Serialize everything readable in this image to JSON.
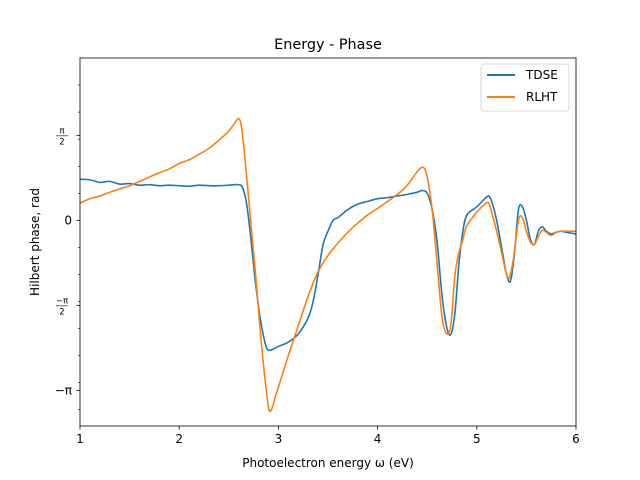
{
  "chart_data": {
    "type": "line",
    "title": "Energy - Phase",
    "xlabel": "Photoelectron energy ω (eV)",
    "ylabel": "Hilbert phase, rad",
    "xlim": [
      1,
      6
    ],
    "ylim": [
      -3.8,
      3.0
    ],
    "x_ticks": [
      {
        "value": 1,
        "label": "1"
      },
      {
        "value": 2,
        "label": "2"
      },
      {
        "value": 3,
        "label": "3"
      },
      {
        "value": 4,
        "label": "4"
      },
      {
        "value": 5,
        "label": "5"
      },
      {
        "value": 6,
        "label": "6"
      }
    ],
    "y_ticks": [
      {
        "value": -3.14159,
        "label": "−π"
      },
      {
        "value": -1.5708,
        "num": "−π",
        "den": "2"
      },
      {
        "value": 0,
        "label": "0"
      },
      {
        "value": 1.5708,
        "num": "π",
        "den": "2"
      }
    ],
    "legend_position": "upper-right",
    "grid": false,
    "series": [
      {
        "name": "TDSE",
        "color": "#1f77b4",
        "points": [
          [
            1.0,
            0.76
          ],
          [
            1.1,
            0.75
          ],
          [
            1.2,
            0.7
          ],
          [
            1.3,
            0.72
          ],
          [
            1.4,
            0.67
          ],
          [
            1.5,
            0.68
          ],
          [
            1.6,
            0.65
          ],
          [
            1.7,
            0.66
          ],
          [
            1.8,
            0.64
          ],
          [
            1.9,
            0.65
          ],
          [
            2.0,
            0.64
          ],
          [
            2.1,
            0.63
          ],
          [
            2.2,
            0.65
          ],
          [
            2.3,
            0.64
          ],
          [
            2.4,
            0.64
          ],
          [
            2.5,
            0.65
          ],
          [
            2.6,
            0.66
          ],
          [
            2.64,
            0.6
          ],
          [
            2.68,
            0.3
          ],
          [
            2.72,
            -0.3
          ],
          [
            2.76,
            -1.0
          ],
          [
            2.8,
            -1.6
          ],
          [
            2.84,
            -2.05
          ],
          [
            2.88,
            -2.35
          ],
          [
            2.92,
            -2.4
          ],
          [
            3.0,
            -2.33
          ],
          [
            3.1,
            -2.25
          ],
          [
            3.2,
            -2.1
          ],
          [
            3.3,
            -1.8
          ],
          [
            3.35,
            -1.5
          ],
          [
            3.4,
            -1.0
          ],
          [
            3.45,
            -0.45
          ],
          [
            3.5,
            -0.2
          ],
          [
            3.55,
            0.0
          ],
          [
            3.6,
            0.05
          ],
          [
            3.7,
            0.2
          ],
          [
            3.8,
            0.3
          ],
          [
            3.9,
            0.35
          ],
          [
            4.0,
            0.4
          ],
          [
            4.1,
            0.42
          ],
          [
            4.2,
            0.45
          ],
          [
            4.3,
            0.48
          ],
          [
            4.4,
            0.52
          ],
          [
            4.45,
            0.55
          ],
          [
            4.5,
            0.5
          ],
          [
            4.55,
            0.2
          ],
          [
            4.6,
            -0.4
          ],
          [
            4.65,
            -1.4
          ],
          [
            4.7,
            -2.0
          ],
          [
            4.74,
            -2.1
          ],
          [
            4.78,
            -1.7
          ],
          [
            4.82,
            -0.8
          ],
          [
            4.86,
            -0.2
          ],
          [
            4.9,
            0.1
          ],
          [
            5.0,
            0.25
          ],
          [
            5.08,
            0.4
          ],
          [
            5.12,
            0.45
          ],
          [
            5.15,
            0.35
          ],
          [
            5.2,
            0.0
          ],
          [
            5.25,
            -0.5
          ],
          [
            5.3,
            -1.0
          ],
          [
            5.34,
            -1.12
          ],
          [
            5.38,
            -0.6
          ],
          [
            5.42,
            0.2
          ],
          [
            5.46,
            0.25
          ],
          [
            5.5,
            0.0
          ],
          [
            5.54,
            -0.35
          ],
          [
            5.58,
            -0.45
          ],
          [
            5.62,
            -0.2
          ],
          [
            5.66,
            -0.12
          ],
          [
            5.7,
            -0.2
          ],
          [
            5.75,
            -0.25
          ],
          [
            5.8,
            -0.22
          ],
          [
            5.85,
            -0.2
          ],
          [
            5.9,
            -0.22
          ],
          [
            6.0,
            -0.25
          ]
        ]
      },
      {
        "name": "RLHT",
        "color": "#ff7f0e",
        "points": [
          [
            1.0,
            0.32
          ],
          [
            1.1,
            0.4
          ],
          [
            1.2,
            0.45
          ],
          [
            1.3,
            0.52
          ],
          [
            1.4,
            0.58
          ],
          [
            1.5,
            0.64
          ],
          [
            1.6,
            0.72
          ],
          [
            1.7,
            0.8
          ],
          [
            1.8,
            0.88
          ],
          [
            1.9,
            0.95
          ],
          [
            2.0,
            1.05
          ],
          [
            2.1,
            1.12
          ],
          [
            2.2,
            1.22
          ],
          [
            2.3,
            1.33
          ],
          [
            2.4,
            1.48
          ],
          [
            2.5,
            1.65
          ],
          [
            2.56,
            1.8
          ],
          [
            2.6,
            1.88
          ],
          [
            2.63,
            1.7
          ],
          [
            2.67,
            1.0
          ],
          [
            2.72,
            0.0
          ],
          [
            2.77,
            -1.0
          ],
          [
            2.82,
            -2.1
          ],
          [
            2.86,
            -2.85
          ],
          [
            2.9,
            -3.45
          ],
          [
            2.93,
            -3.5
          ],
          [
            2.98,
            -3.2
          ],
          [
            3.1,
            -2.5
          ],
          [
            3.2,
            -1.95
          ],
          [
            3.3,
            -1.4
          ],
          [
            3.4,
            -0.95
          ],
          [
            3.5,
            -0.65
          ],
          [
            3.6,
            -0.42
          ],
          [
            3.7,
            -0.22
          ],
          [
            3.8,
            -0.05
          ],
          [
            3.9,
            0.1
          ],
          [
            4.0,
            0.22
          ],
          [
            4.1,
            0.35
          ],
          [
            4.2,
            0.48
          ],
          [
            4.3,
            0.65
          ],
          [
            4.4,
            0.9
          ],
          [
            4.46,
            0.98
          ],
          [
            4.5,
            0.8
          ],
          [
            4.55,
            0.2
          ],
          [
            4.6,
            -0.8
          ],
          [
            4.65,
            -1.8
          ],
          [
            4.7,
            -2.1
          ],
          [
            4.74,
            -1.9
          ],
          [
            4.78,
            -1.0
          ],
          [
            4.82,
            -0.6
          ],
          [
            4.86,
            -0.35
          ],
          [
            4.9,
            -0.1
          ],
          [
            5.0,
            0.15
          ],
          [
            5.08,
            0.3
          ],
          [
            5.12,
            0.32
          ],
          [
            5.15,
            0.15
          ],
          [
            5.2,
            -0.2
          ],
          [
            5.25,
            -0.6
          ],
          [
            5.3,
            -1.0
          ],
          [
            5.33,
            -1.05
          ],
          [
            5.37,
            -0.7
          ],
          [
            5.42,
            0.0
          ],
          [
            5.46,
            0.05
          ],
          [
            5.5,
            -0.2
          ],
          [
            5.54,
            -0.4
          ],
          [
            5.58,
            -0.45
          ],
          [
            5.62,
            -0.3
          ],
          [
            5.66,
            -0.18
          ],
          [
            5.7,
            -0.22
          ],
          [
            5.75,
            -0.28
          ],
          [
            5.8,
            -0.22
          ],
          [
            5.85,
            -0.2
          ],
          [
            5.9,
            -0.2
          ],
          [
            6.0,
            -0.2
          ]
        ]
      }
    ]
  }
}
